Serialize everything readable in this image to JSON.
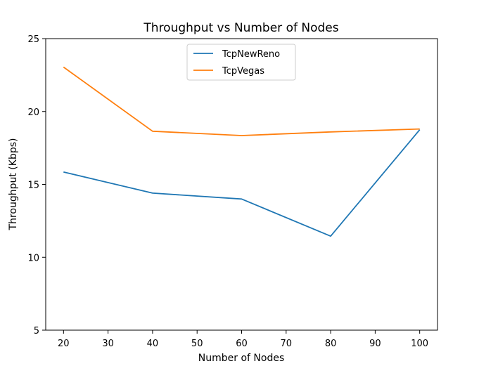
{
  "chart_data": {
    "type": "line",
    "title": "Throughput vs Number of Nodes",
    "xlabel": "Number of Nodes",
    "ylabel": "Throughput (Kbps)",
    "x": [
      20,
      40,
      60,
      80,
      100
    ],
    "xlim": [
      16,
      104
    ],
    "ylim": [
      5,
      25
    ],
    "xticks": [
      20,
      30,
      40,
      50,
      60,
      70,
      80,
      90,
      100
    ],
    "yticks": [
      5,
      10,
      15,
      20,
      25
    ],
    "grid": false,
    "legend_position": "upper center",
    "series": [
      {
        "name": "TcpNewReno",
        "color": "#1f77b4",
        "values": [
          15.85,
          14.4,
          14.0,
          11.45,
          18.75
        ]
      },
      {
        "name": "TcpVegas",
        "color": "#ff7f0e",
        "values": [
          23.05,
          18.65,
          18.35,
          18.6,
          18.8
        ]
      }
    ]
  }
}
